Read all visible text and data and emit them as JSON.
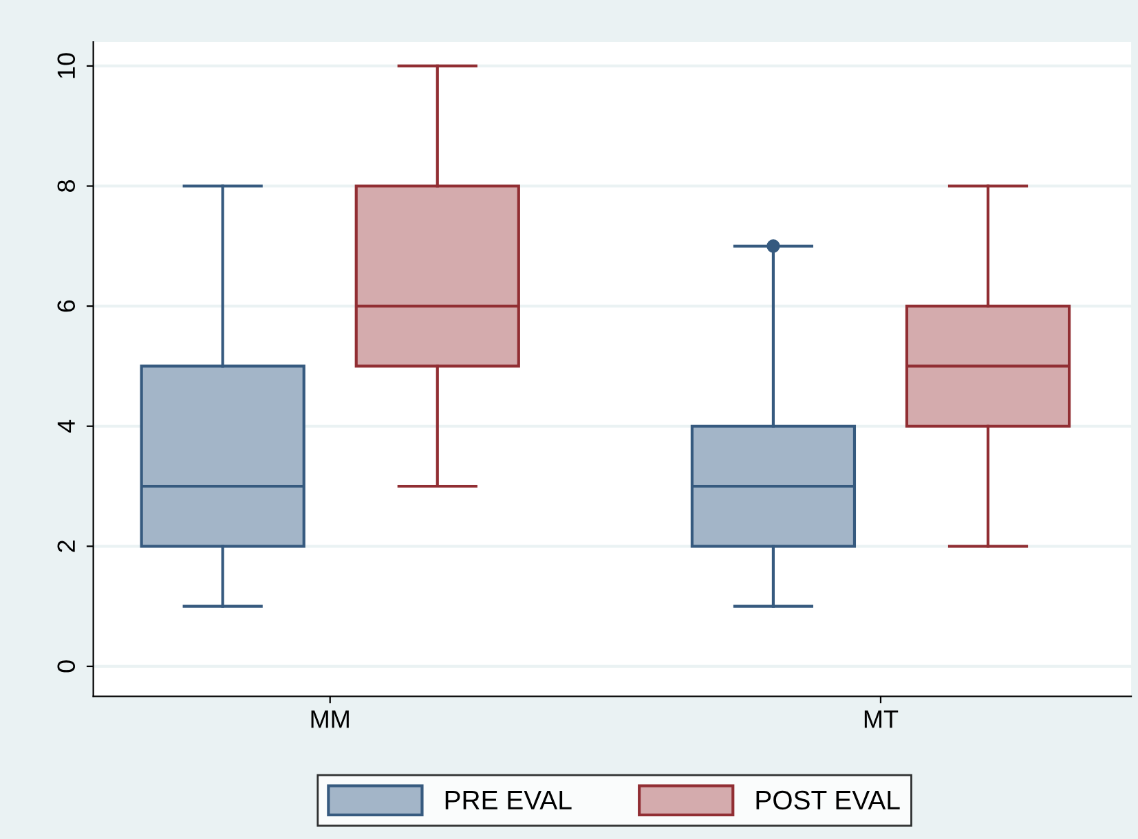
{
  "chart_data": {
    "type": "box",
    "categories": [
      "MM",
      "MT"
    ],
    "series": [
      {
        "name": "PRE EVAL",
        "color": "#a3b5c8",
        "boxes": [
          {
            "low": 1,
            "q1": 2,
            "median": 3,
            "q3": 5,
            "high": 8
          },
          {
            "low": 1,
            "q1": 2,
            "median": 3,
            "q3": 4,
            "high": 7,
            "outliers": [
              7
            ]
          }
        ]
      },
      {
        "name": "POST EVAL",
        "color": "#d4abad",
        "boxes": [
          {
            "low": 3,
            "q1": 5,
            "median": 6,
            "q3": 8,
            "high": 10
          },
          {
            "low": 2,
            "q1": 4,
            "median": 5,
            "q3": 6,
            "high": 8
          }
        ]
      }
    ],
    "ylim": [
      -0.5,
      10.4
    ],
    "yticks": [
      0,
      2,
      4,
      6,
      8,
      10
    ],
    "grid": "y",
    "legend": "bottom"
  }
}
